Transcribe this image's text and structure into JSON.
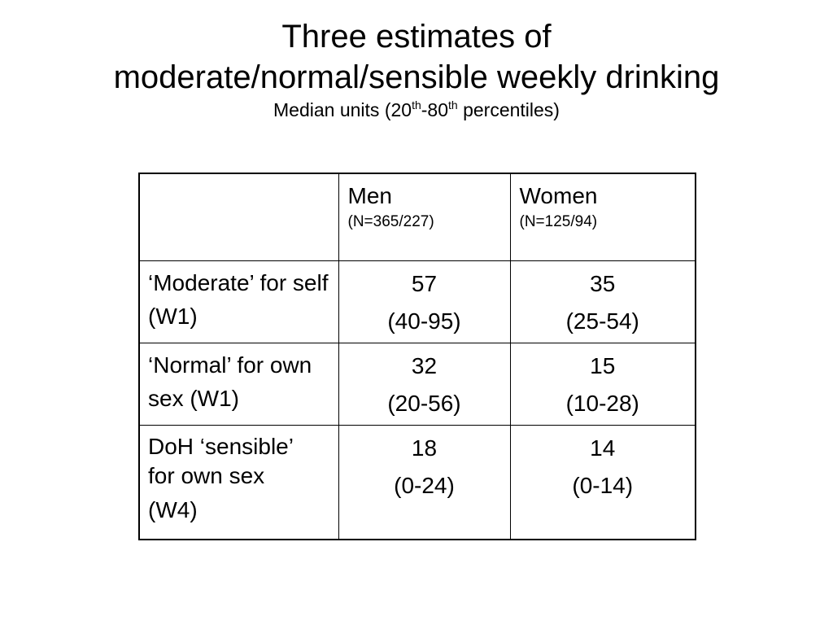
{
  "title": {
    "line1": "Three estimates of",
    "line2": "moderate/normal/sensible weekly drinking",
    "subtitle_prefix": "Median units (20",
    "subtitle_sup1": "th",
    "subtitle_mid": "-80",
    "subtitle_sup2": "th",
    "subtitle_suffix": " percentiles)"
  },
  "table": {
    "header": {
      "corner": "",
      "men": {
        "label": "Men",
        "n": "(N=365/227)"
      },
      "women": {
        "label": "Women",
        "n": "(N=125/94)"
      }
    },
    "rows": [
      {
        "label": "‘Moderate’ for self (W1)",
        "men": {
          "median": "57",
          "range": "(40-95)"
        },
        "women": {
          "median": "35",
          "range": "(25-54)"
        }
      },
      {
        "label": "‘Normal’ for own sex (W1)",
        "men": {
          "median": "32",
          "range": "(20-56)"
        },
        "women": {
          "median": "15",
          "range": "(10-28)"
        }
      },
      {
        "label_line1": "DoH ‘sensible’",
        "label_line2": "for own sex",
        "label_line3": "(W4)",
        "men": {
          "median": "18",
          "range": "(0-24)"
        },
        "women": {
          "median": "14",
          "range": "(0-14)"
        }
      }
    ]
  }
}
